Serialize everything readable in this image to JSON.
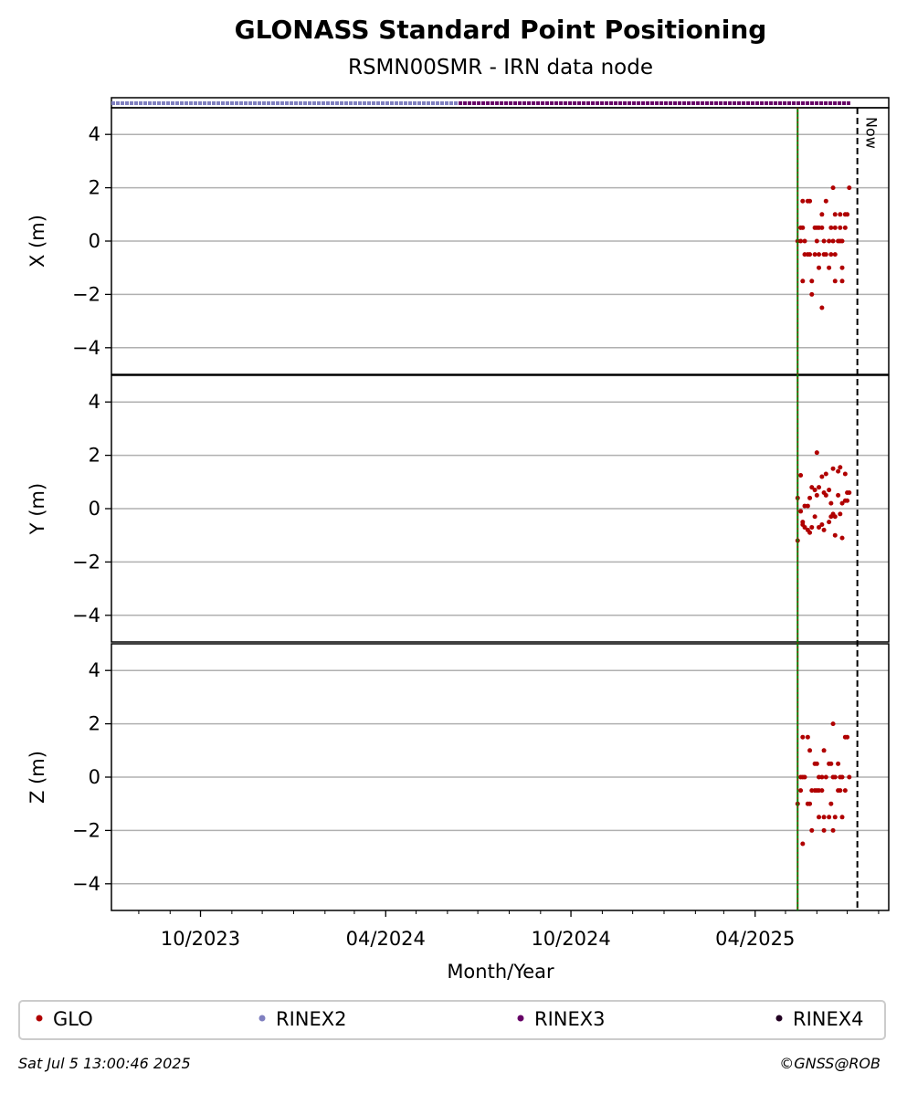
{
  "title": "GLONASS Standard Point Positioning",
  "subtitle": "RSMN00SMR - IRN data node",
  "xlim": [
    "2023-07-05",
    "2025-08-11"
  ],
  "xlabel": "Month/Year",
  "xticks": [
    {
      "value": "2023-10-01",
      "label": "10/2023"
    },
    {
      "value": "2024-04-01",
      "label": "04/2024"
    },
    {
      "value": "2024-10-01",
      "label": "10/2024"
    },
    {
      "value": "2025-04-01",
      "label": "04/2025"
    }
  ],
  "xminorticks": [
    "2023-08-01",
    "2023-09-01",
    "2023-11-01",
    "2023-12-01",
    "2024-01-01",
    "2024-02-01",
    "2024-03-01",
    "2024-05-01",
    "2024-06-01",
    "2024-07-01",
    "2024-08-01",
    "2024-09-01",
    "2024-11-01",
    "2024-12-01",
    "2025-01-01",
    "2025-02-01",
    "2025-03-01",
    "2025-05-01",
    "2025-06-01",
    "2025-07-01",
    "2025-08-01"
  ],
  "availability": [
    {
      "name": "RINEX2",
      "color": "#8080c0",
      "start": "2023-07-05",
      "end": "2024-06-12"
    },
    {
      "name": "RINEX3",
      "color": "#660066",
      "start": "2024-06-12",
      "end": "2025-07-04"
    }
  ],
  "markers": [
    {
      "x": "2025-05-13",
      "color": "#008000"
    },
    {
      "x": "2025-07-11",
      "color": "#000000",
      "dashed": true,
      "label": "Now"
    }
  ],
  "legend": [
    {
      "name": "GLO",
      "color": "#b00000"
    },
    {
      "name": "RINEX2",
      "color": "#8080c0"
    },
    {
      "name": "RINEX3",
      "color": "#660066"
    },
    {
      "name": "RINEX4",
      "color": "#220022"
    }
  ],
  "footer": {
    "left": "Sat Jul  5 13:00:46 2025",
    "right": "©GNSS@ROB"
  },
  "chart_data": [
    {
      "type": "scatter",
      "ylabel": "X (m)",
      "ylim": [
        -5,
        5
      ],
      "grid": true,
      "yticks": [
        {
          "value": -4,
          "label": "−4"
        },
        {
          "value": -2,
          "label": "−2"
        },
        0,
        2,
        4
      ],
      "series": [
        {
          "color": "#b00000",
          "x": [
            "2025-05-13",
            "2025-05-16",
            "2025-05-16",
            "2025-05-18",
            "2025-05-18",
            "2025-05-18",
            "2025-05-20",
            "2025-05-20",
            "2025-05-23",
            "2025-05-23",
            "2025-05-25",
            "2025-05-25",
            "2025-05-27",
            "2025-05-27",
            "2025-05-30",
            "2025-05-30",
            "2025-06-01",
            "2025-06-01",
            "2025-06-03",
            "2025-06-03",
            "2025-06-03",
            "2025-06-06",
            "2025-06-06",
            "2025-06-06",
            "2025-06-08",
            "2025-06-08",
            "2025-06-10",
            "2025-06-10",
            "2025-06-13",
            "2025-06-13",
            "2025-06-15",
            "2025-06-15",
            "2025-06-17",
            "2025-06-17",
            "2025-06-19",
            "2025-06-19",
            "2025-06-19",
            "2025-06-19",
            "2025-06-22",
            "2025-06-24",
            "2025-06-24",
            "2025-06-24",
            "2025-06-26",
            "2025-06-26",
            "2025-06-26",
            "2025-06-29",
            "2025-06-29",
            "2025-07-01",
            "2025-07-03"
          ],
          "values": [
            0,
            0.5,
            0,
            1.5,
            0.5,
            -1.5,
            0,
            -0.5,
            1.5,
            -0.5,
            1.5,
            -0.5,
            -1.5,
            -2,
            0.5,
            -0.5,
            0.5,
            0,
            0.5,
            -0.5,
            -1,
            -2.5,
            1,
            0.5,
            0,
            -0.5,
            1.5,
            -0.5,
            0,
            -1,
            -0.5,
            0.5,
            2,
            0,
            -1.5,
            1,
            0.5,
            -0.5,
            0,
            1,
            0.5,
            0,
            0,
            -1,
            -1.5,
            0.5,
            1,
            1,
            2
          ]
        }
      ]
    },
    {
      "type": "scatter",
      "ylabel": "Y (m)",
      "ylim": [
        -5,
        5
      ],
      "grid": true,
      "yticks": [
        {
          "value": -4,
          "label": "−4"
        },
        {
          "value": -2,
          "label": "−2"
        },
        0,
        2,
        4
      ],
      "series": [
        {
          "color": "#b00000",
          "x": [
            "2025-05-13",
            "2025-05-13",
            "2025-05-16",
            "2025-05-16",
            "2025-05-18",
            "2025-05-18",
            "2025-05-20",
            "2025-05-20",
            "2025-05-23",
            "2025-05-23",
            "2025-05-25",
            "2025-05-25",
            "2025-05-27",
            "2025-05-27",
            "2025-05-30",
            "2025-05-30",
            "2025-06-01",
            "2025-06-01",
            "2025-06-03",
            "2025-06-03",
            "2025-06-06",
            "2025-06-06",
            "2025-06-08",
            "2025-06-08",
            "2025-06-10",
            "2025-06-10",
            "2025-06-13",
            "2025-06-13",
            "2025-06-15",
            "2025-06-15",
            "2025-06-17",
            "2025-06-17",
            "2025-06-19",
            "2025-06-19",
            "2025-06-22",
            "2025-06-22",
            "2025-06-24",
            "2025-06-24",
            "2025-06-26",
            "2025-06-26",
            "2025-06-29",
            "2025-06-29",
            "2025-07-01",
            "2025-07-01",
            "2025-07-03"
          ],
          "values": [
            -1.2,
            0.4,
            1.25,
            -0.1,
            -0.5,
            -0.6,
            -0.7,
            0.1,
            -0.8,
            0.1,
            0.4,
            -0.9,
            -0.7,
            0.8,
            0.7,
            -0.3,
            2.1,
            0.5,
            -0.7,
            0.8,
            1.2,
            -0.6,
            0.6,
            -0.8,
            0.5,
            1.3,
            0.7,
            -0.5,
            0.2,
            -0.3,
            1.5,
            -0.2,
            -1.0,
            -0.3,
            1.4,
            0.5,
            -0.2,
            1.55,
            0.2,
            -1.1,
            0.3,
            1.3,
            0.6,
            0.3,
            0.6
          ]
        }
      ]
    },
    {
      "type": "scatter",
      "ylabel": "Z (m)",
      "ylim": [
        -5,
        5
      ],
      "grid": true,
      "yticks": [
        {
          "value": -4,
          "label": "−4"
        },
        {
          "value": -2,
          "label": "−2"
        },
        0,
        2,
        4
      ],
      "series": [
        {
          "color": "#b00000",
          "x": [
            "2025-05-13",
            "2025-05-16",
            "2025-05-16",
            "2025-05-18",
            "2025-05-18",
            "2025-05-18",
            "2025-05-20",
            "2025-05-23",
            "2025-05-23",
            "2025-05-25",
            "2025-05-25",
            "2025-05-27",
            "2025-05-27",
            "2025-05-30",
            "2025-05-30",
            "2025-06-01",
            "2025-06-01",
            "2025-06-03",
            "2025-06-03",
            "2025-06-03",
            "2025-06-06",
            "2025-06-06",
            "2025-06-08",
            "2025-06-08",
            "2025-06-08",
            "2025-06-10",
            "2025-06-13",
            "2025-06-13",
            "2025-06-15",
            "2025-06-15",
            "2025-06-17",
            "2025-06-17",
            "2025-06-17",
            "2025-06-19",
            "2025-06-19",
            "2025-06-22",
            "2025-06-22",
            "2025-06-24",
            "2025-06-24",
            "2025-06-26",
            "2025-06-26",
            "2025-06-29",
            "2025-06-29",
            "2025-07-01",
            "2025-07-03"
          ],
          "values": [
            -1,
            0,
            -0.5,
            1.5,
            -2.5,
            0,
            0,
            -1,
            1.5,
            -1,
            1,
            -2,
            -0.5,
            0.5,
            -0.5,
            0.5,
            -0.5,
            -1.5,
            0,
            -0.5,
            0,
            -0.5,
            1,
            -2,
            -1.5,
            0,
            -1.5,
            0.5,
            0.5,
            -1,
            2,
            -2,
            0,
            -1.5,
            0,
            -0.5,
            0.5,
            0,
            -0.5,
            0,
            -1.5,
            1.5,
            -0.5,
            1.5,
            0
          ]
        }
      ]
    }
  ]
}
